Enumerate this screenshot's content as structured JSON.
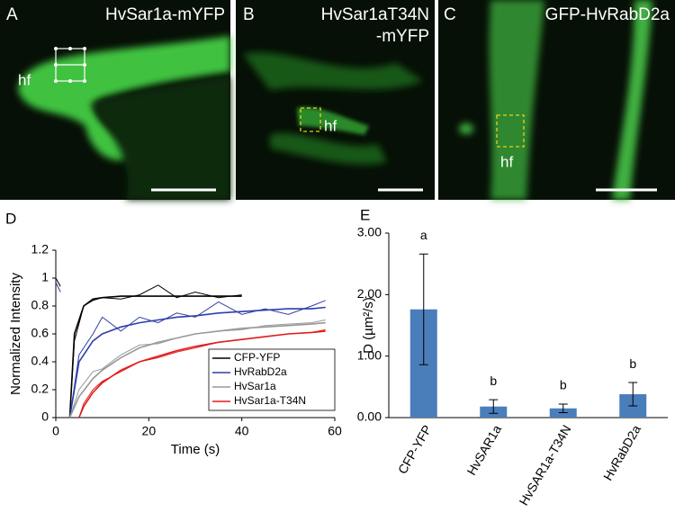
{
  "panels": [
    {
      "letter": "A",
      "label": "HvSar1a-mYFP",
      "annotation": "hf"
    },
    {
      "letter": "B",
      "label": "HvSar1aT34N",
      "label_line2": "-mYFP",
      "annotation": "hf"
    },
    {
      "letter": "C",
      "label": "GFP-HvRabD2a",
      "annotation": "hf"
    }
  ],
  "chart_data": [
    {
      "type": "line",
      "panel": "D",
      "xlabel": "Time (s)",
      "ylabel": "Normalized Intensity",
      "xlim": [
        0,
        60
      ],
      "xticks": [
        0,
        20,
        40,
        60
      ],
      "ylim": [
        0,
        1.2
      ],
      "yticks": [
        0,
        0.2,
        0.4,
        0.6,
        0.8,
        1,
        1.2
      ],
      "legend": "lower right",
      "series": [
        {
          "name": "CFP-YFP",
          "color": "#000000",
          "x": [
            0,
            1,
            2,
            3,
            4,
            6,
            8,
            10,
            14,
            18,
            22,
            26,
            30,
            35,
            40
          ],
          "values": [
            1.0,
            0.94,
            null,
            0,
            0.55,
            0.8,
            0.84,
            0.86,
            0.85,
            0.88,
            0.95,
            0.86,
            0.9,
            0.86,
            0.88
          ],
          "fit_values": [
            null,
            null,
            null,
            0,
            0.6,
            0.8,
            0.85,
            0.86,
            0.87,
            0.87,
            0.87,
            0.87,
            0.87,
            0.87,
            0.87
          ]
        },
        {
          "name": "HvRabD2a",
          "color": "#2e3fa8",
          "x": [
            0,
            1,
            2,
            3,
            5,
            8,
            10,
            14,
            18,
            22,
            26,
            30,
            35,
            40,
            45,
            50,
            55,
            58
          ],
          "values": [
            0.97,
            0.9,
            null,
            0,
            0.45,
            0.6,
            0.72,
            0.62,
            0.72,
            0.68,
            0.75,
            0.72,
            0.83,
            0.74,
            0.78,
            0.74,
            0.8,
            0.84
          ],
          "fit_values": [
            null,
            null,
            null,
            0,
            0.4,
            0.55,
            0.6,
            0.65,
            0.68,
            0.7,
            0.72,
            0.73,
            0.75,
            0.76,
            0.77,
            0.78,
            0.78,
            0.79
          ]
        },
        {
          "name": "HvSar1a",
          "color": "#999999",
          "x": [
            3,
            5,
            8,
            10,
            14,
            18,
            22,
            26,
            30,
            35,
            40,
            45,
            50,
            55,
            58
          ],
          "values": [
            0,
            0.2,
            0.33,
            0.35,
            0.45,
            0.52,
            0.53,
            0.57,
            0.6,
            0.62,
            0.63,
            0.66,
            0.67,
            0.68,
            0.7
          ],
          "fit_values": [
            0,
            0.15,
            0.28,
            0.34,
            0.43,
            0.5,
            0.54,
            0.57,
            0.6,
            0.62,
            0.64,
            0.65,
            0.66,
            0.67,
            0.68
          ]
        },
        {
          "name": "HvSar1a-T34N",
          "color": "#e21b1b",
          "x": [
            5,
            6,
            8,
            10,
            14,
            18,
            22,
            26,
            30,
            35,
            40,
            45,
            50,
            55,
            58
          ],
          "values": [
            0,
            0.1,
            0.2,
            0.26,
            0.33,
            0.4,
            0.43,
            0.47,
            0.5,
            0.54,
            0.56,
            0.58,
            0.6,
            0.61,
            0.63
          ],
          "fit_values": [
            0,
            0.08,
            0.18,
            0.25,
            0.34,
            0.4,
            0.44,
            0.48,
            0.51,
            0.54,
            0.56,
            0.58,
            0.6,
            0.61,
            0.62
          ]
        }
      ]
    },
    {
      "type": "bar",
      "panel": "E",
      "ylabel": "D (µm²/s)",
      "categories": [
        "CFP-YFP",
        "HvSAR1a",
        "HvSAR1a-T34N",
        "HvRabD2a"
      ],
      "values": [
        1.76,
        0.18,
        0.15,
        0.38
      ],
      "errors": [
        0.9,
        0.11,
        0.07,
        0.19
      ],
      "annotations": [
        "a",
        "b",
        "b",
        "b"
      ],
      "color": "#4a7ebb",
      "ylim": [
        0,
        3
      ],
      "yticks": [
        {
          "value": 0,
          "label": "0.00"
        },
        {
          "value": 1,
          "label": "1.00"
        },
        {
          "value": 2,
          "label": "2.00"
        },
        {
          "value": 3,
          "label": "3.00"
        }
      ]
    }
  ]
}
